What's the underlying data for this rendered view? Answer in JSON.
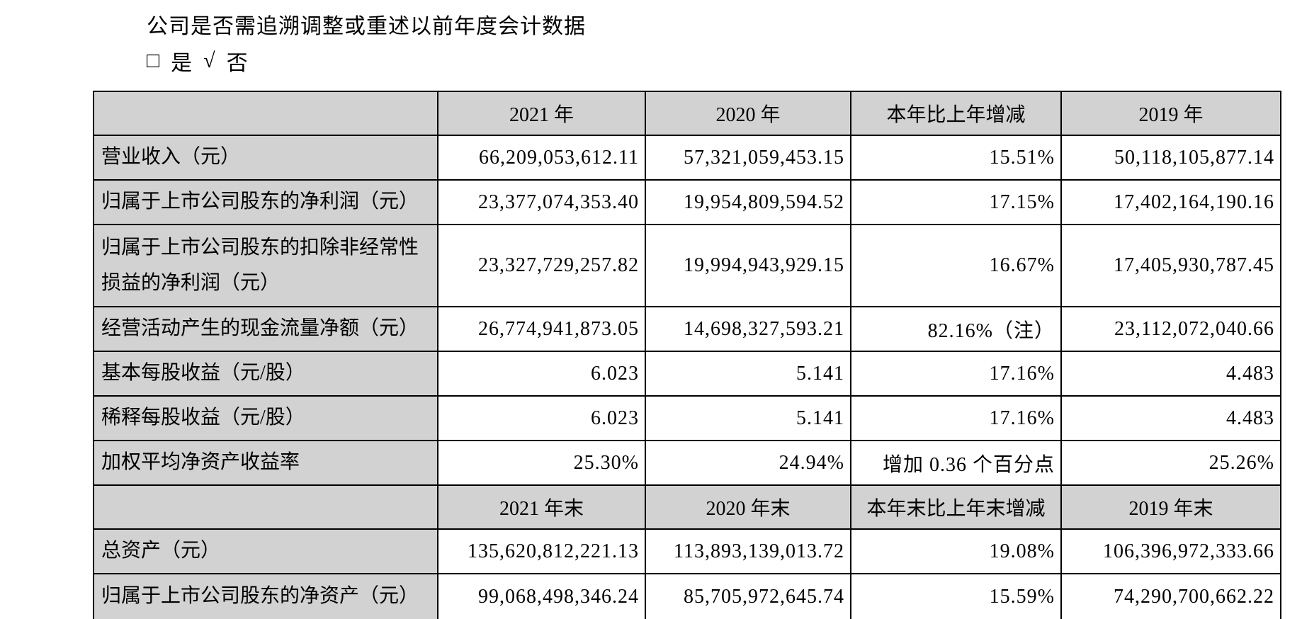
{
  "colors": {
    "header_bg": "#d2d2d2",
    "border": "#000000",
    "text": "#000000",
    "page_bg": "#ffffff"
  },
  "page": {
    "question": "公司是否需追溯调整或重述以前年度会计数据",
    "options": {
      "yes_symbol": "□",
      "yes_label": "是",
      "no_symbol": "√",
      "no_label": "否"
    }
  },
  "table": {
    "columns_period": [
      "",
      "2021 年",
      "2020 年",
      "本年比上年增减",
      "2019 年"
    ],
    "rows_period": [
      {
        "label": "营业收入（元）",
        "v2021": "66,209,053,612.11",
        "v2020": "57,321,059,453.15",
        "change": "15.51%",
        "v2019": "50,118,105,877.14"
      },
      {
        "label": "归属于上市公司股东的净利润（元）",
        "v2021": "23,377,074,353.40",
        "v2020": "19,954,809,594.52",
        "change": "17.15%",
        "v2019": "17,402,164,190.16"
      },
      {
        "label": "归属于上市公司股东的扣除非经常性损益的净利润（元）",
        "v2021": "23,327,729,257.82",
        "v2020": "19,994,943,929.15",
        "change": "16.67%",
        "v2019": "17,405,930,787.45"
      },
      {
        "label": "经营活动产生的现金流量净额（元）",
        "v2021": "26,774,941,873.05",
        "v2020": "14,698,327,593.21",
        "change": "82.16%（注）",
        "v2019": "23,112,072,040.66"
      },
      {
        "label": "基本每股收益（元/股）",
        "v2021": "6.023",
        "v2020": "5.141",
        "change": "17.16%",
        "v2019": "4.483"
      },
      {
        "label": "稀释每股收益（元/股）",
        "v2021": "6.023",
        "v2020": "5.141",
        "change": "17.16%",
        "v2019": "4.483"
      },
      {
        "label": "加权平均净资产收益率",
        "v2021": "25.30%",
        "v2020": "24.94%",
        "change": "增加 0.36 个百分点",
        "v2019": "25.26%"
      }
    ],
    "columns_eop": [
      "",
      "2021 年末",
      "2020 年末",
      "本年末比上年末增减",
      "2019 年末"
    ],
    "rows_eop": [
      {
        "label": "总资产（元）",
        "v2021": "135,620,812,221.13",
        "v2020": "113,893,139,013.72",
        "change": "19.08%",
        "v2019": "106,396,972,333.66"
      },
      {
        "label": "归属于上市公司股东的净资产（元）",
        "v2021": "99,068,498,346.24",
        "v2020": "85,705,972,645.74",
        "change": "15.59%",
        "v2019": "74,290,700,662.22"
      }
    ]
  }
}
